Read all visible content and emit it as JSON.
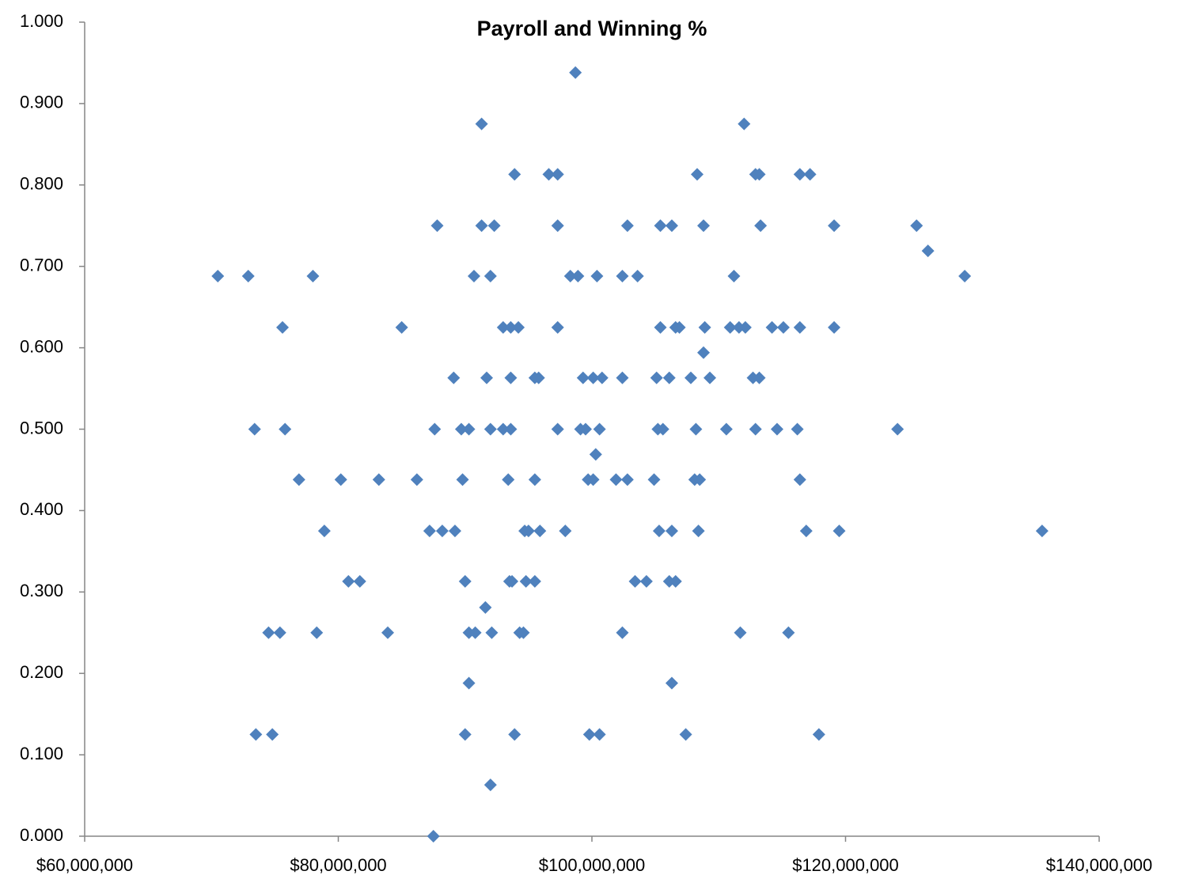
{
  "chart_data": {
    "type": "scatter",
    "title": "Payroll and Winning %",
    "color": "#4f81bd",
    "x": [
      98700000,
      91300000,
      112000000,
      93900000,
      96600000,
      97300000,
      108300000,
      112900000,
      113200000,
      116400000,
      117200000,
      87800000,
      91300000,
      92300000,
      97300000,
      102800000,
      105400000,
      106300000,
      108800000,
      113300000,
      119100000,
      125600000,
      126500000,
      70500000,
      72900000,
      78000000,
      90700000,
      92000000,
      98300000,
      98900000,
      100400000,
      102400000,
      103600000,
      111200000,
      129400000,
      75600000,
      85000000,
      93000000,
      93600000,
      94200000,
      97300000,
      105400000,
      106600000,
      106900000,
      108900000,
      110900000,
      111600000,
      112100000,
      114200000,
      115100000,
      116400000,
      119100000,
      108800000,
      89100000,
      91700000,
      93600000,
      95500000,
      95800000,
      99300000,
      100100000,
      100800000,
      102400000,
      105100000,
      106100000,
      107800000,
      109300000,
      112700000,
      113200000,
      73400000,
      75800000,
      87600000,
      89700000,
      90300000,
      92000000,
      93000000,
      93600000,
      97300000,
      99100000,
      99500000,
      100600000,
      105200000,
      105600000,
      108200000,
      110600000,
      112900000,
      114600000,
      116200000,
      124100000,
      100300000,
      76900000,
      80200000,
      83200000,
      86200000,
      89800000,
      93400000,
      95500000,
      99700000,
      100100000,
      101900000,
      102800000,
      104900000,
      108100000,
      108500000,
      116400000,
      78900000,
      87200000,
      88200000,
      89200000,
      94700000,
      95000000,
      95900000,
      97900000,
      105300000,
      106300000,
      108400000,
      116900000,
      119500000,
      135500000,
      80800000,
      81700000,
      90000000,
      93500000,
      93700000,
      94800000,
      95500000,
      103400000,
      104300000,
      106100000,
      106600000,
      91600000,
      74500000,
      75400000,
      78300000,
      83900000,
      90300000,
      90800000,
      92100000,
      94300000,
      94600000,
      102400000,
      111700000,
      115500000,
      90300000,
      106300000,
      73500000,
      74800000,
      90000000,
      93900000,
      99800000,
      100600000,
      107400000,
      117900000,
      92000000,
      87500000
    ],
    "values": [
      0.938,
      0.875,
      0.875,
      0.813,
      0.813,
      0.813,
      0.813,
      0.813,
      0.813,
      0.813,
      0.813,
      0.75,
      0.75,
      0.75,
      0.75,
      0.75,
      0.75,
      0.75,
      0.75,
      0.75,
      0.75,
      0.75,
      0.719,
      0.688,
      0.688,
      0.688,
      0.688,
      0.688,
      0.688,
      0.688,
      0.688,
      0.688,
      0.688,
      0.688,
      0.688,
      0.625,
      0.625,
      0.625,
      0.625,
      0.625,
      0.625,
      0.625,
      0.625,
      0.625,
      0.625,
      0.625,
      0.625,
      0.625,
      0.625,
      0.625,
      0.625,
      0.625,
      0.594,
      0.563,
      0.563,
      0.563,
      0.563,
      0.563,
      0.563,
      0.563,
      0.563,
      0.563,
      0.563,
      0.563,
      0.563,
      0.563,
      0.563,
      0.563,
      0.5,
      0.5,
      0.5,
      0.5,
      0.5,
      0.5,
      0.5,
      0.5,
      0.5,
      0.5,
      0.5,
      0.5,
      0.5,
      0.5,
      0.5,
      0.5,
      0.5,
      0.5,
      0.5,
      0.5,
      0.469,
      0.438,
      0.438,
      0.438,
      0.438,
      0.438,
      0.438,
      0.438,
      0.438,
      0.438,
      0.438,
      0.438,
      0.438,
      0.438,
      0.438,
      0.438,
      0.375,
      0.375,
      0.375,
      0.375,
      0.375,
      0.375,
      0.375,
      0.375,
      0.375,
      0.375,
      0.375,
      0.375,
      0.375,
      0.375,
      0.313,
      0.313,
      0.313,
      0.313,
      0.313,
      0.313,
      0.313,
      0.313,
      0.313,
      0.313,
      0.313,
      0.281,
      0.25,
      0.25,
      0.25,
      0.25,
      0.25,
      0.25,
      0.25,
      0.25,
      0.25,
      0.25,
      0.25,
      0.25,
      0.188,
      0.188,
      0.125,
      0.125,
      0.125,
      0.125,
      0.125,
      0.125,
      0.125,
      0.125,
      0.063,
      0
    ],
    "xlim": [
      60000000,
      140000000
    ],
    "xticks": [
      {
        "value": 60000000,
        "label": "$60,000,000"
      },
      {
        "value": 80000000,
        "label": "$80,000,000"
      },
      {
        "value": 100000000,
        "label": "$100,000,000"
      },
      {
        "value": 120000000,
        "label": "$120,000,000"
      },
      {
        "value": 140000000,
        "label": "$140,000,000"
      }
    ],
    "ylim": [
      0,
      1
    ],
    "yticks": [
      {
        "value": 0,
        "label": "0.000"
      },
      {
        "value": 0.1,
        "label": "0.100"
      },
      {
        "value": 0.2,
        "label": "0.200"
      },
      {
        "value": 0.3,
        "label": "0.300"
      },
      {
        "value": 0.4,
        "label": "0.400"
      },
      {
        "value": 0.5,
        "label": "0.500"
      },
      {
        "value": 0.6,
        "label": "0.600"
      },
      {
        "value": 0.7,
        "label": "0.700"
      },
      {
        "value": 0.8,
        "label": "0.800"
      },
      {
        "value": 0.9,
        "label": "0.900"
      },
      {
        "value": 1,
        "label": "1.000"
      }
    ],
    "grid": false
  }
}
